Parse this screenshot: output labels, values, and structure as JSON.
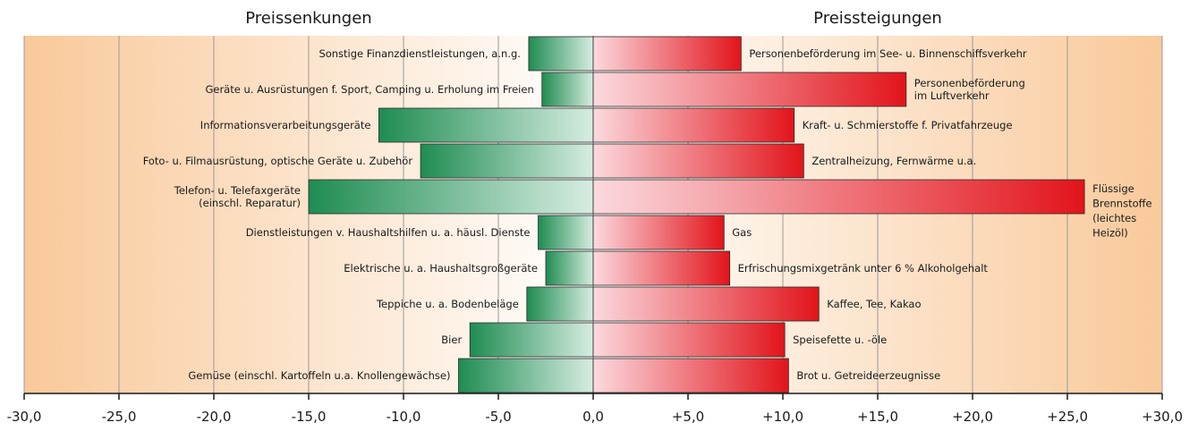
{
  "chart_data": {
    "type": "bar",
    "orientation": "horizontal-diverging",
    "header_left": "Preissenkungen",
    "header_right": "Preissteigungen",
    "xlim": [
      -30,
      30
    ],
    "xticks": [
      "-30,0",
      "-25,0",
      "-20,0",
      "-15,0",
      "-10,0",
      "-5,0",
      "0,0",
      "+5,0",
      "+10,0",
      "+15,0",
      "+20,0",
      "+25,0",
      "+30,0"
    ],
    "grid": true,
    "rows": [
      {
        "decrease_label": [
          "Sonstige Finanzdienstleistungen, a.n.g."
        ],
        "decrease": -3.4,
        "increase_label": [
          "Personenbeförderung im See- u. Binnenschiffsverkehr"
        ],
        "increase": 7.8
      },
      {
        "decrease_label": [
          "Geräte u. Ausrüstungen f. Sport, Camping u. Erholung im Freien"
        ],
        "decrease": -2.7,
        "increase_label": [
          "Personenbeförderung",
          "im Luftverkehr"
        ],
        "increase": 16.5
      },
      {
        "decrease_label": [
          "Informationsverarbeitungsgeräte"
        ],
        "decrease": -11.3,
        "increase_label": [
          "Kraft- u. Schmierstoffe f. Privatfahrzeuge"
        ],
        "increase": 10.6
      },
      {
        "decrease_label": [
          "Foto- u. Filmausrüstung, optische Geräte u. Zubehör"
        ],
        "decrease": -9.1,
        "increase_label": [
          "Zentralheizung, Fernwärme u.a."
        ],
        "increase": 11.1
      },
      {
        "decrease_label": [
          "Telefon- u. Telefaxgeräte",
          "(einschl. Reparatur)"
        ],
        "decrease": -15.0,
        "increase_label": [
          "Flüssige",
          "Brennstoffe",
          "(leichtes",
          "Heizöl)"
        ],
        "increase": 25.9
      },
      {
        "decrease_label": [
          "Dienstleistungen v. Haushaltshilfen u. a. häusl. Dienste"
        ],
        "decrease": -2.9,
        "increase_label": [
          "Gas"
        ],
        "increase": 6.9
      },
      {
        "decrease_label": [
          "Elektrische u. a. Haushaltsgroßgeräte"
        ],
        "decrease": -2.5,
        "increase_label": [
          "Erfrischungsmixgetränk unter 6 % Alkoholgehalt"
        ],
        "increase": 7.2
      },
      {
        "decrease_label": [
          "Teppiche u. a.  Bodenbeläge"
        ],
        "decrease": -3.5,
        "increase_label": [
          "Kaffee, Tee, Kakao"
        ],
        "increase": 11.9
      },
      {
        "decrease_label": [
          "Bier"
        ],
        "decrease": -6.5,
        "increase_label": [
          "Speisefette u. -öle"
        ],
        "increase": 10.1
      },
      {
        "decrease_label": [
          "Gemüse (einschl. Kartoffeln u.a. Knollengewächse)"
        ],
        "decrease": -7.1,
        "increase_label": [
          "Brot u. Getreideerzeugnisse"
        ],
        "increase": 10.3
      }
    ]
  },
  "colors": {
    "background_edge": "#f9c99a",
    "background_center": "#ffffff",
    "decrease_dark": "#1f8c52",
    "decrease_light": "#d6ede1",
    "increase_light": "#fbd9de",
    "increase_dark": "#e2141b",
    "grid": "#9a9a9a"
  }
}
